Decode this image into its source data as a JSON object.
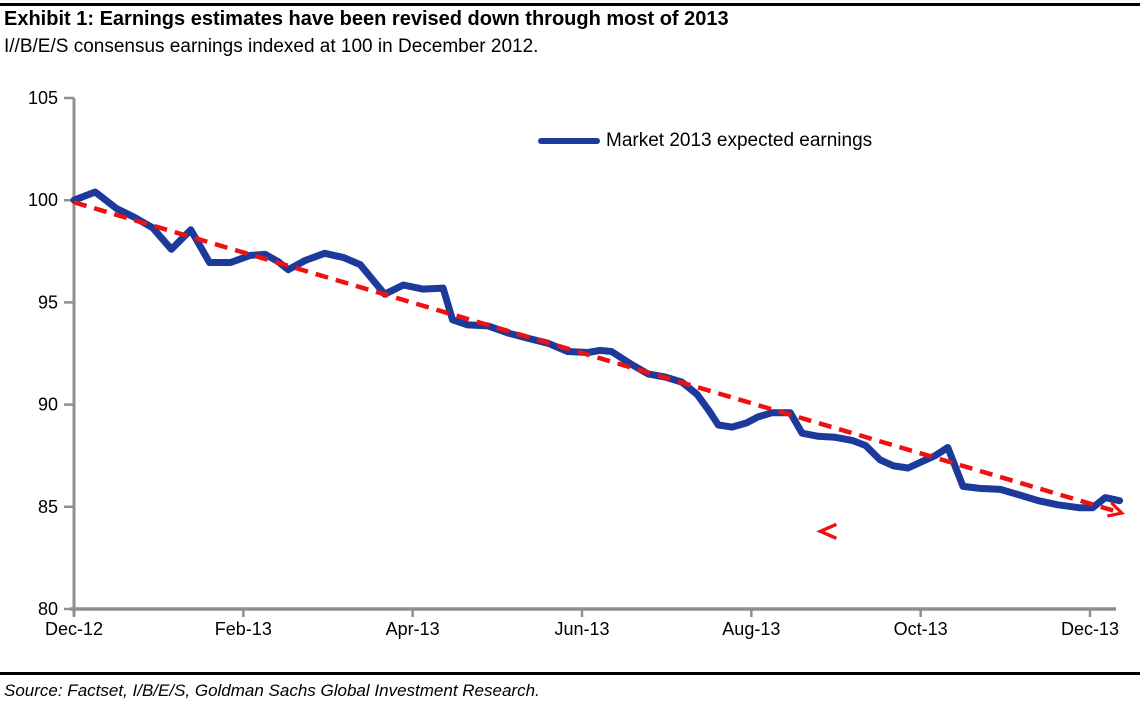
{
  "header": {
    "title": "Exhibit 1: Earnings estimates have been revised down through most of 2013",
    "subtitle": "I//B/E/S consensus earnings indexed at 100 in December 2012."
  },
  "legend": {
    "label": "Market 2013 expected earnings"
  },
  "footer": {
    "source": "Source: Factset, I/B/E/S, Goldman Sachs Global Investment Research."
  },
  "colors": {
    "series_blue": "#1B3A9B",
    "trend_red": "#EE1111",
    "axis_gray": "#8F8F8F",
    "text_black": "#000000"
  },
  "chart_data": {
    "type": "line",
    "title": "Exhibit 1: Earnings estimates have been revised down through most of 2013",
    "subtitle": "I//B/E/S consensus earnings indexed at 100 in December 2012.",
    "xlabel": "",
    "ylabel": "",
    "x_unit": "months since Dec-2012",
    "x_tick_labels": [
      "Dec-12",
      "Feb-13",
      "Apr-13",
      "Jun-13",
      "Aug-13",
      "Oct-13",
      "Dec-13"
    ],
    "x_tick_months": [
      0,
      2,
      4,
      6,
      8,
      10,
      12
    ],
    "xlim": [
      0,
      12.45
    ],
    "ylim": [
      80,
      105
    ],
    "y_ticks": [
      80,
      85,
      90,
      95,
      100,
      105
    ],
    "grid": false,
    "legend_position": "top-center",
    "series": [
      {
        "name": "Market 2013 expected earnings",
        "style": "solid",
        "color": "#1B3A9B",
        "points": [
          [
            0.0,
            100.0
          ],
          [
            0.25,
            100.4
          ],
          [
            0.5,
            99.6
          ],
          [
            0.72,
            99.15
          ],
          [
            0.93,
            98.65
          ],
          [
            1.15,
            97.6
          ],
          [
            1.38,
            98.55
          ],
          [
            1.6,
            96.95
          ],
          [
            1.85,
            96.95
          ],
          [
            2.08,
            97.3
          ],
          [
            2.26,
            97.35
          ],
          [
            2.41,
            97.0
          ],
          [
            2.53,
            96.6
          ],
          [
            2.73,
            97.05
          ],
          [
            2.96,
            97.4
          ],
          [
            3.18,
            97.2
          ],
          [
            3.38,
            96.85
          ],
          [
            3.67,
            95.4
          ],
          [
            3.89,
            95.85
          ],
          [
            4.12,
            95.65
          ],
          [
            4.36,
            95.7
          ],
          [
            4.47,
            94.15
          ],
          [
            4.65,
            93.9
          ],
          [
            4.89,
            93.85
          ],
          [
            5.13,
            93.5
          ],
          [
            5.36,
            93.25
          ],
          [
            5.6,
            93.0
          ],
          [
            5.83,
            92.6
          ],
          [
            6.07,
            92.55
          ],
          [
            6.21,
            92.65
          ],
          [
            6.35,
            92.6
          ],
          [
            6.57,
            92.0
          ],
          [
            6.78,
            91.5
          ],
          [
            6.98,
            91.35
          ],
          [
            7.18,
            91.1
          ],
          [
            7.36,
            90.5
          ],
          [
            7.5,
            89.7
          ],
          [
            7.61,
            89.0
          ],
          [
            7.77,
            88.9
          ],
          [
            7.94,
            89.1
          ],
          [
            8.08,
            89.4
          ],
          [
            8.24,
            89.6
          ],
          [
            8.46,
            89.6
          ],
          [
            8.6,
            88.6
          ],
          [
            8.79,
            88.45
          ],
          [
            8.99,
            88.4
          ],
          [
            9.19,
            88.25
          ],
          [
            9.35,
            88.0
          ],
          [
            9.52,
            87.3
          ],
          [
            9.68,
            87.0
          ],
          [
            9.85,
            86.9
          ],
          [
            10.01,
            87.2
          ],
          [
            10.17,
            87.5
          ],
          [
            10.32,
            87.9
          ],
          [
            10.5,
            86.0
          ],
          [
            10.7,
            85.9
          ],
          [
            10.94,
            85.85
          ],
          [
            11.15,
            85.6
          ],
          [
            11.39,
            85.3
          ],
          [
            11.62,
            85.1
          ],
          [
            11.88,
            84.95
          ],
          [
            12.03,
            84.95
          ],
          [
            12.18,
            85.45
          ],
          [
            12.35,
            85.3
          ]
        ]
      }
    ],
    "trend": {
      "name": "downward revision trend",
      "style": "dashed",
      "color": "#EE1111",
      "from": [
        0.0,
        99.9
      ],
      "to": [
        12.33,
        84.75
      ],
      "arrow_end": true
    },
    "annotation_arrow": {
      "shape": "<",
      "color": "#EE1111",
      "month": 8.91,
      "value": 83.8
    }
  }
}
